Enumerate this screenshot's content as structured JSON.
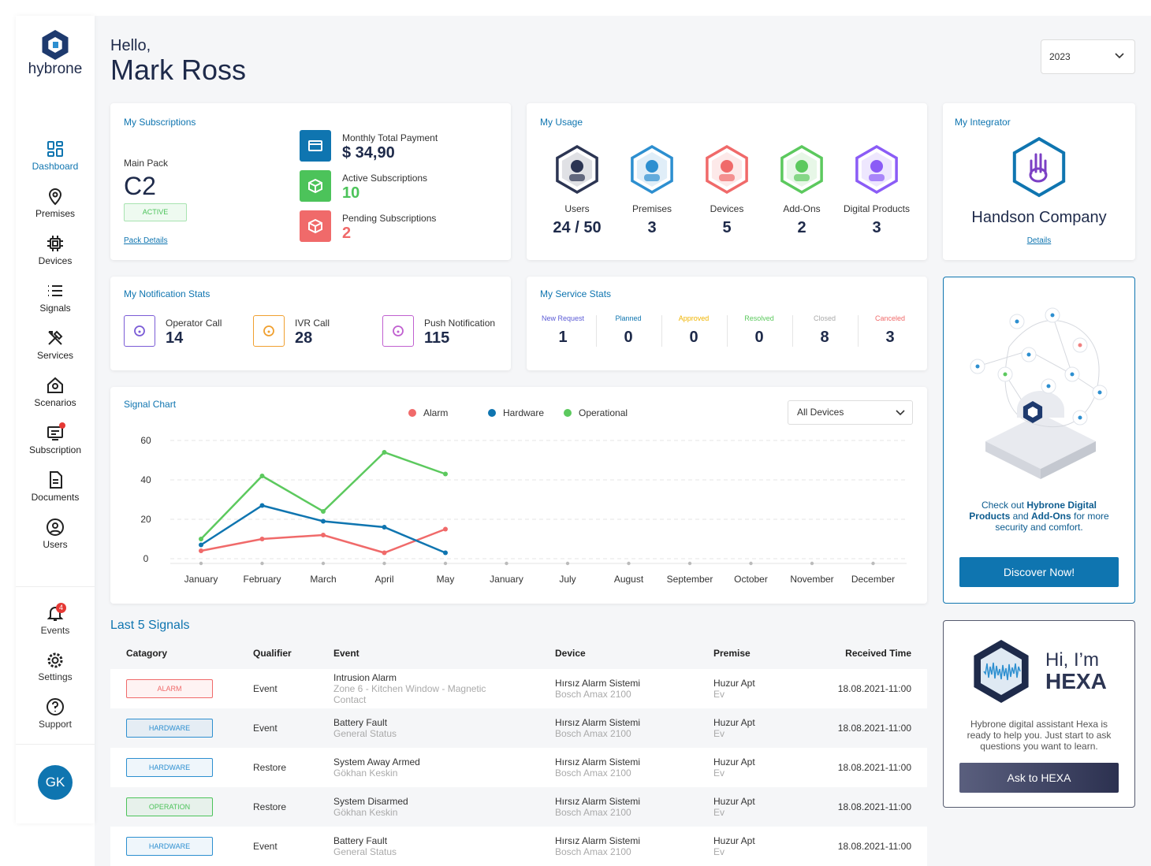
{
  "sidebar": {
    "brand": "hybrone",
    "nav": [
      "Dashboard",
      "Premises",
      "Devices",
      "Signals",
      "Services",
      "Scenarios",
      "Subscription",
      "Documents",
      "Users"
    ],
    "bottom": [
      "Events",
      "Settings",
      "Support"
    ],
    "events_badge": 4,
    "avatar": "GK"
  },
  "header": {
    "greeting": "Hello,",
    "name": "Mark Ross",
    "year": "2023"
  },
  "subscriptions": {
    "title": "My Subscriptions",
    "pack_label": "Main Pack",
    "pack": "C2",
    "status": "ACTIVE",
    "link": "Pack Details",
    "items": [
      {
        "label": "Monthly Total Payment",
        "value": "$ 34,90"
      },
      {
        "label": "Active Subscriptions",
        "value": 10
      },
      {
        "label": "Pending Subscriptions",
        "value": 2
      }
    ]
  },
  "usage": {
    "title": "My Usage",
    "items": [
      {
        "label": "Users",
        "value": "24 / 50"
      },
      {
        "label": "Premises",
        "value": 3
      },
      {
        "label": "Devices",
        "value": 5
      },
      {
        "label": "Add-Ons",
        "value": 2
      },
      {
        "label": "Digital Products",
        "value": 3
      }
    ]
  },
  "integrator": {
    "title": "My Integrator",
    "name": "Handson Company",
    "link": "Details"
  },
  "notifications": {
    "title": "My Notification Stats",
    "items": [
      {
        "label": "Operator Call",
        "value": 14
      },
      {
        "label": "IVR Call",
        "value": 28
      },
      {
        "label": "Push Notification",
        "value": 115
      }
    ]
  },
  "service": {
    "title": "My Service Stats",
    "items": [
      {
        "label": "New Request",
        "value": 1
      },
      {
        "label": "Planned",
        "value": 0
      },
      {
        "label": "Approved",
        "value": 0
      },
      {
        "label": "Resolved",
        "value": 0
      },
      {
        "label": "Closed",
        "value": 8
      },
      {
        "label": "Canceled",
        "value": 3
      }
    ]
  },
  "chart_data": {
    "type": "line",
    "title": "Signal Chart",
    "filter": "All Devices",
    "categories": [
      "January",
      "February",
      "March",
      "April",
      "May",
      "January",
      "July",
      "August",
      "September",
      "October",
      "November",
      "December"
    ],
    "series": [
      {
        "name": "Alarm",
        "color": "#f06a6a",
        "values": [
          4,
          10,
          12,
          3,
          15,
          null,
          null,
          null,
          null,
          null,
          null,
          null
        ]
      },
      {
        "name": "Hardware",
        "color": "#0f75b0",
        "values": [
          7,
          27,
          19,
          16,
          3,
          null,
          null,
          null,
          null,
          null,
          null,
          null
        ]
      },
      {
        "name": "Operational",
        "color": "#5cc95e",
        "values": [
          10,
          42,
          24,
          54,
          43,
          null,
          null,
          null,
          null,
          null,
          null,
          null
        ]
      }
    ],
    "ylim": [
      0,
      60
    ],
    "yticks": [
      0,
      20,
      40,
      60
    ],
    "grid": true,
    "legend": "top"
  },
  "signals": {
    "title": "Last 5 Signals",
    "columns": [
      "Catagory",
      "Qualifier",
      "Event",
      "Device",
      "Premise",
      "Received Time"
    ],
    "rows": [
      {
        "category": "ALARM",
        "color": "#f06a6a",
        "qualifier": "Event",
        "event": "Intrusion Alarm",
        "event_detail": "Zone 6 - Kitchen Window - Magnetic Contact",
        "device": "Hırsız Alarm Sistemi",
        "device_model": "Bosch Amax 2100",
        "premise": "Huzur Apt",
        "premise_detail": "Ev",
        "time": "18.08.2021-11:00"
      },
      {
        "category": "HARDWARE",
        "color": "#2d8fd0",
        "qualifier": "Event",
        "event": "Battery Fault",
        "event_detail": "General Status",
        "device": "Hırsız Alarm Sistemi",
        "device_model": "Bosch Amax 2100",
        "premise": "Huzur Apt",
        "premise_detail": "Ev",
        "time": "18.08.2021-11:00"
      },
      {
        "category": "HARDWARE",
        "color": "#2d8fd0",
        "qualifier": "Restore",
        "event": "System Away Armed",
        "event_detail": "Gökhan Keskin",
        "device": "Hırsız Alarm Sistemi",
        "device_model": "Bosch Amax 2100",
        "premise": "Huzur Apt",
        "premise_detail": "Ev",
        "time": "18.08.2021-11:00"
      },
      {
        "category": "OPERATION",
        "color": "#4cc35a",
        "qualifier": "Restore",
        "event": "System Disarmed",
        "event_detail": "Gökhan Keskin",
        "device": "Hırsız Alarm Sistemi",
        "device_model": "Bosch Amax 2100",
        "premise": "Huzur Apt",
        "premise_detail": "Ev",
        "time": "18.08.2021-11:00"
      },
      {
        "category": "HARDWARE",
        "color": "#2d8fd0",
        "qualifier": "Event",
        "event": "Battery Fault",
        "event_detail": "General Status",
        "device": "Hırsız Alarm Sistemi",
        "device_model": "Bosch Amax 2100",
        "premise": "Huzur Apt",
        "premise_detail": "Ev",
        "time": "18.08.2021-11:00"
      }
    ]
  },
  "promo": {
    "text": [
      "Check out ",
      "Hybrone Digital Products",
      " and ",
      "Add-Ons",
      " for more security and comfort."
    ],
    "button": "Discover Now!"
  },
  "hexa": {
    "greeting": "Hi, I’m",
    "name": "HEXA",
    "text": "Hybrone digital assistant Hexa is ready to help you. Just start to ask questions you want to learn.",
    "button": "Ask to HEXA"
  }
}
